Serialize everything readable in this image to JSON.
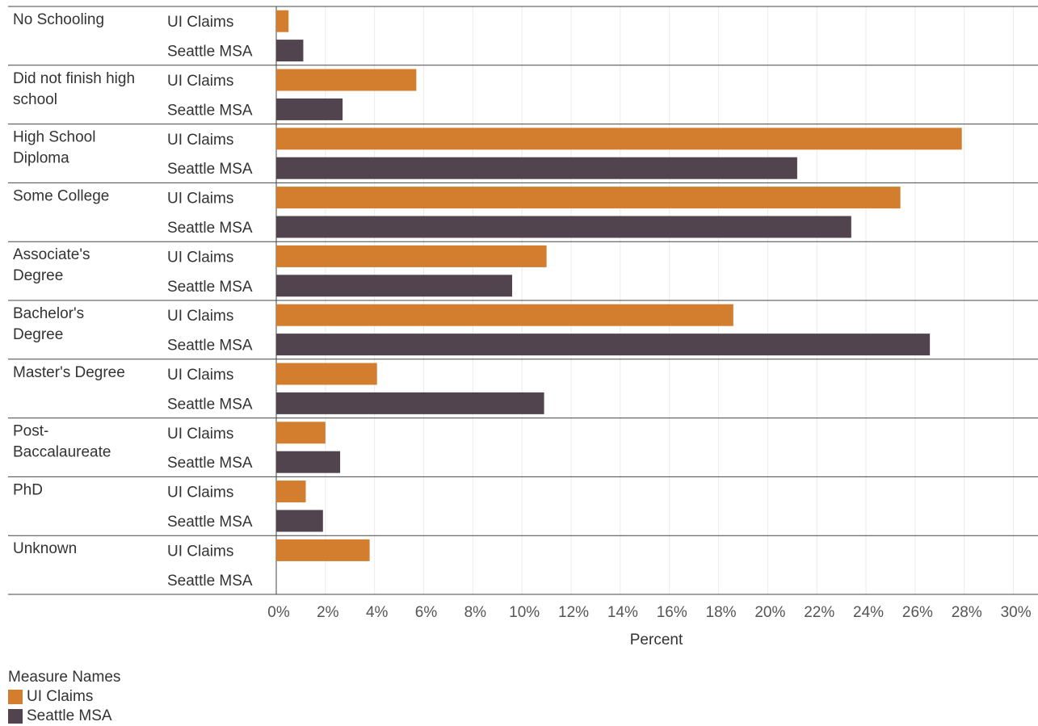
{
  "chart_data": {
    "type": "bar",
    "orientation": "horizontal",
    "categories": [
      "No Schooling",
      "Did not finish high school",
      "High School Diploma",
      "Some College",
      "Associate's Degree",
      "Bachelor's Degree",
      "Master's Degree",
      "Post-Baccalaureate",
      "PhD",
      "Unknown"
    ],
    "category_lines": [
      [
        "No Schooling"
      ],
      [
        "Did not finish high",
        "school"
      ],
      [
        "High School",
        "Diploma"
      ],
      [
        "Some College"
      ],
      [
        "Associate's",
        "Degree"
      ],
      [
        "Bachelor's",
        "Degree"
      ],
      [
        "Master's Degree"
      ],
      [
        "Post-",
        "Baccalaureate"
      ],
      [
        "PhD"
      ],
      [
        "Unknown"
      ]
    ],
    "series": [
      {
        "name": "UI Claims",
        "color": "#D37D2F",
        "values": [
          0.5,
          5.7,
          27.9,
          25.4,
          11.0,
          18.6,
          4.1,
          2.0,
          1.2,
          3.8
        ]
      },
      {
        "name": "Seattle MSA",
        "color": "#52444F",
        "values": [
          1.1,
          2.7,
          21.2,
          23.4,
          9.6,
          26.6,
          10.9,
          2.6,
          1.9,
          null
        ]
      }
    ],
    "xlabel": "Percent",
    "xlim": [
      0,
      31
    ],
    "xticks": [
      0,
      2,
      4,
      6,
      8,
      10,
      12,
      14,
      16,
      18,
      20,
      22,
      24,
      26,
      28,
      30
    ],
    "xtick_labels": [
      "0%",
      "2%",
      "4%",
      "6%",
      "8%",
      "10%",
      "12%",
      "14%",
      "16%",
      "18%",
      "20%",
      "22%",
      "24%",
      "26%",
      "28%",
      "30%"
    ],
    "grid": true,
    "legend": {
      "title": "Measure Names",
      "position": "bottom-left"
    }
  }
}
